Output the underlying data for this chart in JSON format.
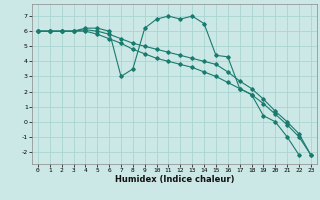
{
  "xlabel": "Humidex (Indice chaleur)",
  "ylabel": "",
  "bg_color": "#cce8e6",
  "grid_color": "#aad4d0",
  "line_color": "#1a7a6e",
  "series": [
    {
      "x": [
        0,
        1,
        2,
        3,
        4,
        5,
        6,
        7,
        8,
        9,
        10,
        11,
        12,
        13,
        14,
        15,
        16,
        17,
        18,
        19,
        20,
        21,
        22,
        23
      ],
      "y": [
        6.0,
        6.0,
        6.0,
        6.0,
        6.2,
        6.2,
        6.0,
        3.0,
        3.5,
        6.2,
        6.8,
        7.0,
        6.8,
        7.0,
        6.5,
        4.4,
        4.3,
        2.2,
        1.8,
        0.4,
        0.0,
        -1.0,
        -2.2,
        null
      ]
    },
    {
      "x": [
        0,
        1,
        2,
        3,
        4,
        5,
        6,
        7,
        8,
        9,
        10,
        11,
        12,
        13,
        14,
        15,
        16,
        17,
        18,
        19,
        20,
        21,
        22,
        23
      ],
      "y": [
        6.0,
        6.0,
        6.0,
        6.0,
        6.1,
        6.0,
        5.8,
        5.5,
        5.2,
        5.0,
        4.8,
        4.6,
        4.4,
        4.2,
        4.0,
        3.8,
        3.3,
        2.7,
        2.2,
        1.5,
        0.7,
        0.0,
        -0.8,
        -2.2
      ]
    },
    {
      "x": [
        0,
        1,
        2,
        3,
        4,
        5,
        6,
        7,
        8,
        9,
        10,
        11,
        12,
        13,
        14,
        15,
        16,
        17,
        18,
        19,
        20,
        21,
        22,
        23
      ],
      "y": [
        6.0,
        6.0,
        6.0,
        6.0,
        6.0,
        5.8,
        5.5,
        5.2,
        4.8,
        4.5,
        4.2,
        4.0,
        3.8,
        3.6,
        3.3,
        3.0,
        2.6,
        2.2,
        1.8,
        1.2,
        0.5,
        -0.2,
        -1.0,
        -2.2
      ]
    }
  ],
  "xlim": [
    -0.5,
    23.5
  ],
  "ylim": [
    -2.8,
    7.8
  ],
  "xticks": [
    0,
    1,
    2,
    3,
    4,
    5,
    6,
    7,
    8,
    9,
    10,
    11,
    12,
    13,
    14,
    15,
    16,
    17,
    18,
    19,
    20,
    21,
    22,
    23
  ],
  "yticks": [
    -2,
    -1,
    0,
    1,
    2,
    3,
    4,
    5,
    6,
    7
  ],
  "tick_fontsize": 4.5,
  "xlabel_fontsize": 6.0
}
